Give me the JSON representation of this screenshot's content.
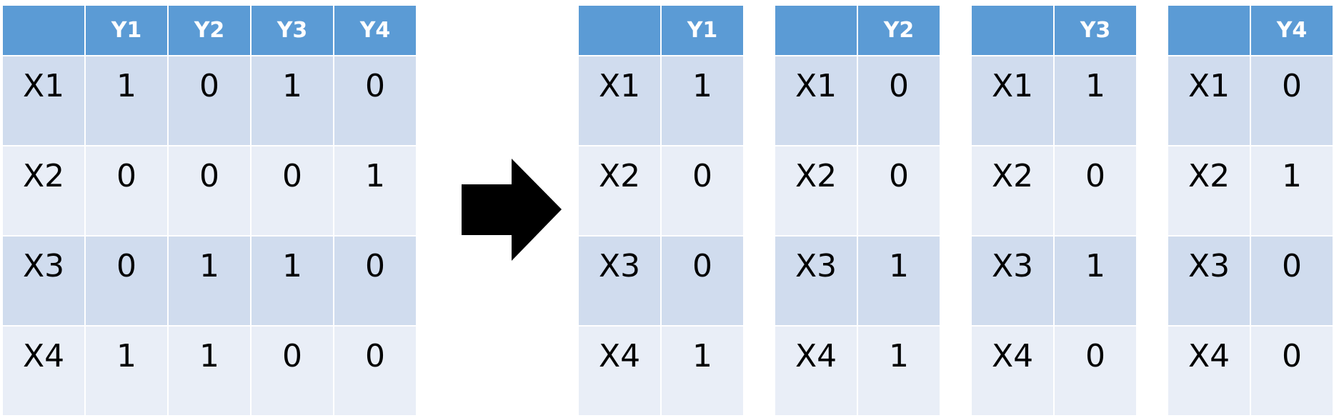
{
  "left_table": {
    "corner": "",
    "columns": [
      "Y1",
      "Y2",
      "Y3",
      "Y4"
    ],
    "rows": [
      {
        "label": "X1",
        "values": [
          "1",
          "0",
          "1",
          "0"
        ]
      },
      {
        "label": "X2",
        "values": [
          "0",
          "0",
          "0",
          "1"
        ]
      },
      {
        "label": "X3",
        "values": [
          "0",
          "1",
          "1",
          "0"
        ]
      },
      {
        "label": "X4",
        "values": [
          "1",
          "1",
          "0",
          "0"
        ]
      }
    ]
  },
  "arrow": {
    "icon": "right-arrow-icon",
    "color": "#000000"
  },
  "split_tables": [
    {
      "corner": "",
      "column": "Y1",
      "rows": [
        {
          "label": "X1",
          "value": "1"
        },
        {
          "label": "X2",
          "value": "0"
        },
        {
          "label": "X3",
          "value": "0"
        },
        {
          "label": "X4",
          "value": "1"
        }
      ]
    },
    {
      "corner": "",
      "column": "Y2",
      "rows": [
        {
          "label": "X1",
          "value": "0"
        },
        {
          "label": "X2",
          "value": "0"
        },
        {
          "label": "X3",
          "value": "1"
        },
        {
          "label": "X4",
          "value": "1"
        }
      ]
    },
    {
      "corner": "",
      "column": "Y3",
      "rows": [
        {
          "label": "X1",
          "value": "1"
        },
        {
          "label": "X2",
          "value": "0"
        },
        {
          "label": "X3",
          "value": "1"
        },
        {
          "label": "X4",
          "value": "0"
        }
      ]
    },
    {
      "corner": "",
      "column": "Y4",
      "rows": [
        {
          "label": "X1",
          "value": "0"
        },
        {
          "label": "X2",
          "value": "1"
        },
        {
          "label": "X3",
          "value": "0"
        },
        {
          "label": "X4",
          "value": "0"
        }
      ]
    }
  ],
  "colors": {
    "header": "#5b9bd5",
    "row_dark": "#d0dcee",
    "row_light": "#e9eef7",
    "grid_lines": "#ffffff"
  }
}
